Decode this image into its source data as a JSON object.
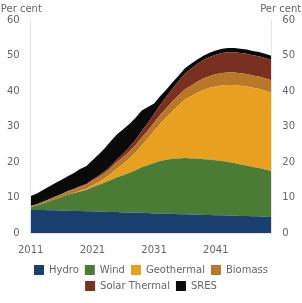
{
  "chart_data": {
    "type": "area",
    "stacked": true,
    "ylabel": "Per cent",
    "y2label": "Per cent",
    "x": [
      2011,
      2012,
      2013,
      2014,
      2015,
      2016,
      2017,
      2018,
      2019,
      2020,
      2021,
      2022,
      2023,
      2024,
      2025,
      2026,
      2027,
      2028,
      2029,
      2030,
      2031,
      2032,
      2033,
      2034,
      2035,
      2036,
      2037,
      2038,
      2039,
      2040,
      2041,
      2042,
      2043,
      2044,
      2045,
      2046,
      2047,
      2048,
      2049,
      2050
    ],
    "series": [
      {
        "name": "Hydro",
        "color": "#1a3f6f",
        "values": [
          6.5,
          6.5,
          6.5,
          6.4,
          6.4,
          6.3,
          6.3,
          6.2,
          6.2,
          6.1,
          6.1,
          6.0,
          6.0,
          5.9,
          5.9,
          5.8,
          5.8,
          5.7,
          5.7,
          5.6,
          5.5,
          5.5,
          5.4,
          5.4,
          5.3,
          5.3,
          5.2,
          5.2,
          5.1,
          5.1,
          5.0,
          5.0,
          4.9,
          4.9,
          4.8,
          4.8,
          4.7,
          4.7,
          4.6,
          4.5
        ]
      },
      {
        "name": "Wind",
        "color": "#4a7c35",
        "values": [
          0.8,
          1.2,
          1.8,
          2.5,
          3.2,
          3.8,
          4.5,
          5.0,
          5.5,
          6.0,
          6.8,
          7.5,
          8.2,
          9.0,
          9.8,
          10.5,
          11.2,
          12.0,
          12.8,
          13.5,
          14.2,
          14.8,
          15.2,
          15.5,
          15.7,
          15.8,
          15.8,
          15.8,
          15.7,
          15.6,
          15.5,
          15.3,
          15.1,
          14.8,
          14.5,
          14.2,
          13.9,
          13.6,
          13.3,
          13.0
        ]
      },
      {
        "name": "Geothermal",
        "color": "#e8a020",
        "values": [
          0.0,
          0.0,
          0.0,
          0.0,
          0.0,
          0.0,
          0.0,
          0.1,
          0.2,
          0.3,
          0.5,
          0.8,
          1.2,
          1.8,
          2.5,
          3.2,
          4.0,
          5.0,
          6.2,
          7.5,
          9.0,
          10.5,
          12.0,
          13.5,
          15.0,
          16.5,
          17.5,
          18.5,
          19.5,
          20.2,
          20.8,
          21.3,
          21.7,
          22.0,
          22.2,
          22.3,
          22.3,
          22.3,
          22.2,
          22.0
        ]
      },
      {
        "name": "Biomass",
        "color": "#b87828",
        "values": [
          0.3,
          0.4,
          0.5,
          0.6,
          0.7,
          0.8,
          0.9,
          1.0,
          1.1,
          1.2,
          1.3,
          1.4,
          1.5,
          1.6,
          1.8,
          1.9,
          2.0,
          2.1,
          2.2,
          2.3,
          2.4,
          2.5,
          2.6,
          2.7,
          2.8,
          2.9,
          3.0,
          3.1,
          3.2,
          3.3,
          3.4,
          3.5,
          3.5,
          3.5,
          3.5,
          3.5,
          3.5,
          3.5,
          3.5,
          3.5
        ]
      },
      {
        "name": "Solar Thermal",
        "color": "#7a3020",
        "values": [
          0.0,
          0.0,
          0.0,
          0.0,
          0.0,
          0.1,
          0.1,
          0.1,
          0.2,
          0.2,
          0.3,
          0.4,
          0.5,
          0.6,
          0.8,
          1.0,
          1.2,
          1.5,
          1.8,
          2.1,
          2.4,
          2.8,
          3.2,
          3.6,
          4.0,
          4.4,
          4.8,
          5.0,
          5.2,
          5.4,
          5.5,
          5.6,
          5.7,
          5.7,
          5.7,
          5.7,
          5.7,
          5.7,
          5.7,
          5.7
        ]
      },
      {
        "name": "SRES",
        "color": "#0a0a0a",
        "values": [
          2.8,
          3.0,
          3.3,
          3.6,
          3.8,
          4.0,
          4.2,
          4.5,
          4.8,
          5.0,
          5.5,
          6.0,
          6.5,
          7.0,
          7.0,
          6.8,
          6.5,
          6.2,
          5.8,
          4.5,
          3.0,
          2.5,
          2.0,
          1.8,
          1.6,
          1.5,
          1.4,
          1.3,
          1.2,
          1.2,
          1.2,
          1.2,
          1.2,
          1.2,
          1.2,
          1.2,
          1.2,
          1.2,
          1.2,
          1.2
        ]
      }
    ],
    "xlim": [
      2011,
      2050
    ],
    "xticks": [
      2011,
      2021,
      2031,
      2041
    ],
    "ylim": [
      0,
      60
    ],
    "yticks": [
      0,
      10,
      20,
      30,
      40,
      50,
      60
    ],
    "y2lim": [
      0,
      60
    ],
    "y2ticks": [
      0,
      10,
      20,
      30,
      40,
      50,
      60
    ],
    "grid": false,
    "legend": "bottom"
  }
}
